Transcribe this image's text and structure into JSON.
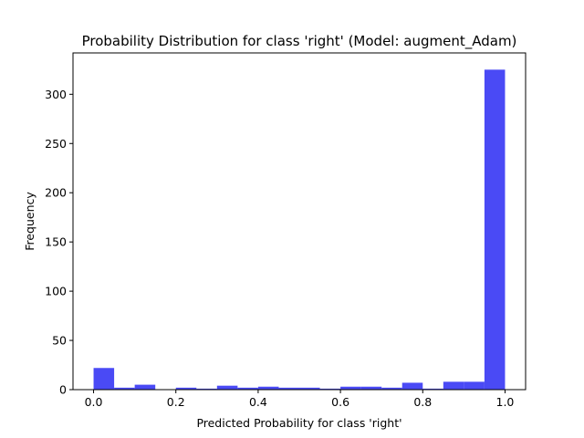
{
  "chart_data": {
    "type": "bar",
    "title": "Probability Distribution for class 'right' (Model: augment_Adam)",
    "xlabel": "Predicted Probability for class 'right'",
    "ylabel": "Frequency",
    "xlim": [
      -0.05,
      1.05
    ],
    "ylim": [
      0,
      342
    ],
    "xticks": [
      "0.0",
      "0.2",
      "0.4",
      "0.6",
      "0.8",
      "1.0"
    ],
    "yticks": [
      "0",
      "50",
      "100",
      "150",
      "200",
      "250",
      "300"
    ],
    "bin_edges": [
      0.0,
      0.05,
      0.1,
      0.15,
      0.2,
      0.25,
      0.3,
      0.35,
      0.4,
      0.45,
      0.5,
      0.55,
      0.6,
      0.65,
      0.7,
      0.75,
      0.8,
      0.85,
      0.9,
      0.95,
      1.0
    ],
    "values": [
      22,
      2,
      5,
      0,
      2,
      1,
      4,
      2,
      3,
      2,
      2,
      1,
      3,
      3,
      2,
      7,
      1,
      8,
      8,
      325
    ],
    "bar_color": "#4a4af5",
    "grid": false,
    "legend": "none"
  }
}
